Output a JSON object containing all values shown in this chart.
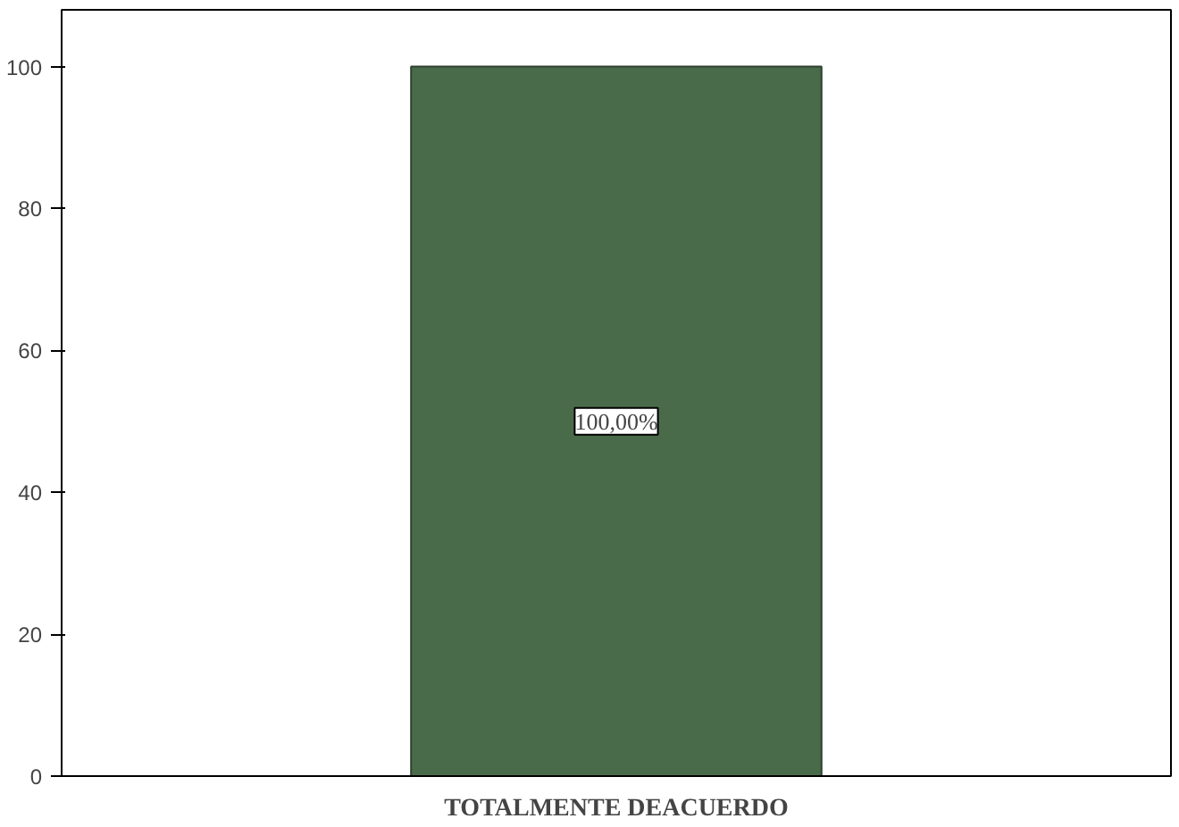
{
  "chart_data": {
    "type": "bar",
    "categories": [
      "TOTALMENTE DEACUERDO"
    ],
    "values": [
      100
    ],
    "value_labels": [
      "100,00%"
    ],
    "color": "#4a6b4a",
    "ylim": [
      0,
      108
    ],
    "yticks": [
      0,
      20,
      40,
      60,
      80,
      100
    ],
    "grid": false
  }
}
